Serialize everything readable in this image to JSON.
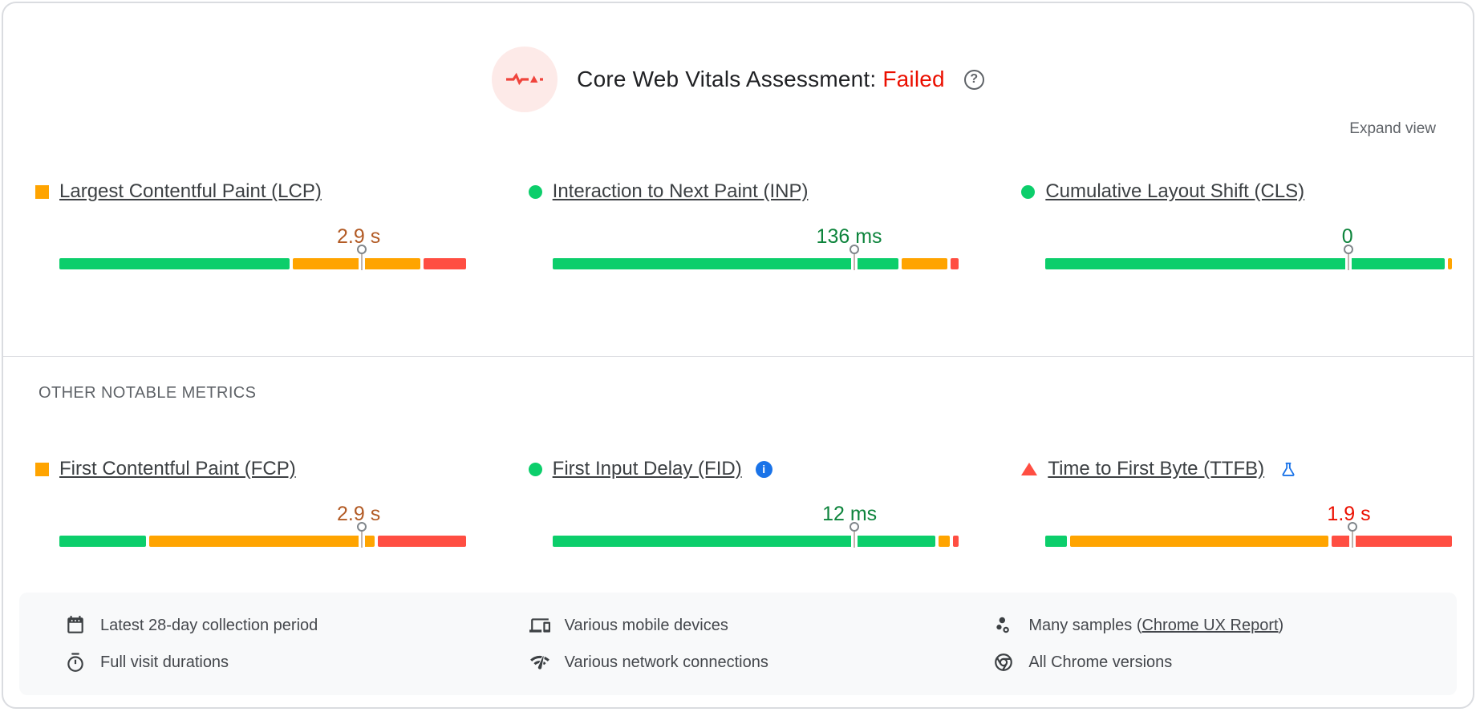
{
  "header": {
    "title": "Core Web Vitals Assessment:",
    "status": "Failed",
    "help_glyph": "?"
  },
  "expand_view_label": "Expand view",
  "other_metrics_label": "OTHER NOTABLE METRICS",
  "metrics": [
    {
      "id": "lcp",
      "label": "Largest Contentful Paint (LCP)",
      "value": "2.9 s",
      "rating": "average",
      "marker_pct": 74.5,
      "distribution": [
        {
          "rating": "good",
          "pct": 57.5
        },
        {
          "rating": "average",
          "pct": 32
        },
        {
          "rating": "poor",
          "pct": 10.5
        }
      ]
    },
    {
      "id": "inp",
      "label": "Interaction to Next Paint (INP)",
      "value": "136 ms",
      "rating": "good",
      "marker_pct": 74.3,
      "distribution": [
        {
          "rating": "good",
          "pct": 86.5
        },
        {
          "rating": "average",
          "pct": 11.5
        },
        {
          "rating": "poor",
          "pct": 2
        }
      ]
    },
    {
      "id": "cls",
      "label": "Cumulative Layout Shift (CLS)",
      "value": "0",
      "rating": "good",
      "marker_pct": 74.5,
      "distribution": [
        {
          "rating": "good",
          "pct": 99
        },
        {
          "rating": "average",
          "pct": 1
        },
        {
          "rating": "poor",
          "pct": 0
        }
      ]
    },
    {
      "id": "fcp",
      "label": "First Contentful Paint (FCP)",
      "value": "2.9 s",
      "rating": "average",
      "marker_pct": 74.5,
      "distribution": [
        {
          "rating": "good",
          "pct": 21.6
        },
        {
          "rating": "average",
          "pct": 56.4
        },
        {
          "rating": "poor",
          "pct": 22
        }
      ]
    },
    {
      "id": "fid",
      "label": "First Input Delay (FID)",
      "value": "12 ms",
      "rating": "good",
      "marker_pct": 74.2,
      "info_glyph": "i",
      "distribution": [
        {
          "rating": "good",
          "pct": 95.7
        },
        {
          "rating": "average",
          "pct": 2.8
        },
        {
          "rating": "poor",
          "pct": 1.5
        }
      ]
    },
    {
      "id": "ttfb",
      "label": "Time to First Byte (TTFB)",
      "value": "1.9 s",
      "rating": "poor",
      "marker_pct": 75.5,
      "distribution": [
        {
          "rating": "good",
          "pct": 5.4
        },
        {
          "rating": "average",
          "pct": 64.6
        },
        {
          "rating": "poor",
          "pct": 30
        }
      ]
    }
  ],
  "footer": {
    "items": [
      {
        "icon": "calendar-icon",
        "text": "Latest 28-day collection period"
      },
      {
        "icon": "stopwatch-icon",
        "text": "Full visit durations"
      },
      {
        "icon": "devices-icon",
        "text": "Various mobile devices"
      },
      {
        "icon": "network-icon",
        "text": "Various network connections"
      },
      {
        "icon": "samples-icon",
        "text_prefix": "Many samples (",
        "link": "Chrome UX Report",
        "text_suffix": ")"
      },
      {
        "icon": "chrome-icon",
        "text": "All Chrome versions"
      }
    ]
  },
  "colors": {
    "good": "#0cce6b",
    "average": "#ffa400",
    "poor": "#ff4e42",
    "good_text": "#0d843c",
    "average_text": "#b25a24",
    "poor_text": "#eb0f00",
    "failed": "#eb0f00",
    "accent_blue": "#1a73e8"
  }
}
